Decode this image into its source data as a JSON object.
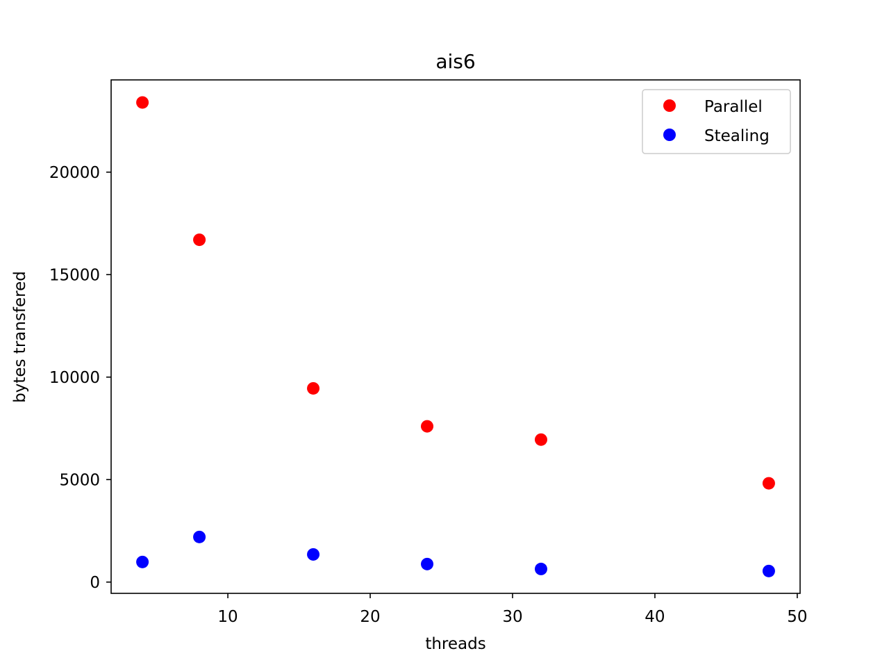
{
  "chart_data": {
    "type": "scatter",
    "title": "ais6",
    "xlabel": "threads",
    "ylabel": "bytes transfered",
    "xlim": [
      1.8,
      50.2
    ],
    "ylim": [
      -550,
      24500
    ],
    "xticks": [
      10,
      20,
      30,
      40,
      50
    ],
    "yticks": [
      0,
      5000,
      10000,
      15000,
      20000
    ],
    "xtick_labels": [
      "10",
      "20",
      "30",
      "40",
      "50"
    ],
    "ytick_labels": [
      "0",
      "5000",
      "10000",
      "15000",
      "20000"
    ],
    "grid": false,
    "legend_position": "top-right",
    "series": [
      {
        "name": "Parallel",
        "color": "#ff0000",
        "x": [
          4,
          8,
          16,
          24,
          32,
          48
        ],
        "y": [
          23400,
          16700,
          9450,
          7600,
          6950,
          4820
        ]
      },
      {
        "name": "Stealing",
        "color": "#0000ff",
        "x": [
          4,
          8,
          16,
          24,
          32,
          48
        ],
        "y": [
          980,
          2200,
          1350,
          880,
          640,
          540
        ]
      }
    ]
  }
}
